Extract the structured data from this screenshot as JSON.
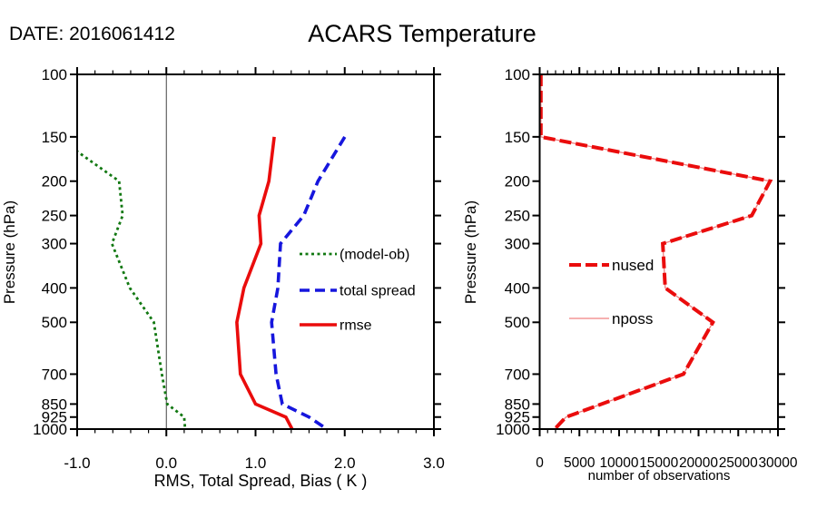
{
  "header": {
    "date_label": "DATE: 2016061412",
    "title": "ACARS Temperature"
  },
  "colors": {
    "bias_green": "#127812",
    "spread_blue": "#1616dd",
    "rmse_red": "#ea0c0c",
    "nused_red": "#ea0c0c",
    "nposs_light_red": "#f08080",
    "axis_black": "#000000",
    "zero_line_gray": "#444444"
  },
  "chart_data": [
    {
      "type": "line",
      "panel": "left",
      "xlabel": "RMS, Total Spread, Bias ( K )",
      "ylabel": "Pressure (hPa)",
      "xlim": [
        -1.0,
        3.0
      ],
      "x_minor_step": 0.2,
      "xticks": [
        {
          "v": -1.0,
          "label": "-1.0"
        },
        {
          "v": 0.0,
          "label": "0.0"
        },
        {
          "v": 1.0,
          "label": "1.0"
        },
        {
          "v": 2.0,
          "label": "2.0"
        },
        {
          "v": 3.0,
          "label": "3.0"
        }
      ],
      "yscale": "log",
      "ylim": [
        100,
        1000
      ],
      "yticks": [
        {
          "v": 100,
          "label": "100"
        },
        {
          "v": 150,
          "label": "150"
        },
        {
          "v": 200,
          "label": "200"
        },
        {
          "v": 250,
          "label": "250"
        },
        {
          "v": 300,
          "label": "300"
        },
        {
          "v": 400,
          "label": "400"
        },
        {
          "v": 500,
          "label": "500"
        },
        {
          "v": 700,
          "label": "700"
        },
        {
          "v": 850,
          "label": "850"
        },
        {
          "v": 925,
          "label": "925"
        },
        {
          "v": 1000,
          "label": "1000"
        }
      ],
      "zero_line_x": 0.0,
      "series": [
        {
          "name": "(model-ob)",
          "color_key": "bias_green",
          "line_style": "dotted",
          "width": 2.8,
          "dash": "3 3.5",
          "pressure": [
            150,
            200,
            250,
            300,
            400,
            500,
            700,
            850,
            925,
            1000
          ],
          "values": [
            -1.23,
            -0.53,
            -0.49,
            -0.61,
            -0.41,
            -0.14,
            -0.05,
            0.01,
            0.2,
            0.21
          ]
        },
        {
          "name": "total spread",
          "color_key": "spread_blue",
          "line_style": "dashed",
          "width": 3.6,
          "dash": "11 6",
          "pressure": [
            150,
            200,
            250,
            300,
            400,
            500,
            700,
            850,
            925,
            1000
          ],
          "values": [
            2.0,
            1.7,
            1.54,
            1.28,
            1.25,
            1.18,
            1.23,
            1.3,
            1.6,
            1.8
          ]
        },
        {
          "name": "rmse",
          "color_key": "rmse_red",
          "line_style": "solid",
          "width": 3.6,
          "dash": "",
          "pressure": [
            150,
            200,
            250,
            300,
            400,
            500,
            700,
            850,
            925,
            1000
          ],
          "values": [
            1.21,
            1.15,
            1.04,
            1.06,
            0.87,
            0.79,
            0.83,
            1.0,
            1.34,
            1.41
          ]
        }
      ]
    },
    {
      "type": "line",
      "panel": "right",
      "xlabel": "number of observations",
      "ylabel": "Pressure (hPa)",
      "xlim": [
        0,
        30000
      ],
      "x_minor_step": 1000,
      "xticks": [
        {
          "v": 0,
          "label": "0"
        },
        {
          "v": 5000,
          "label": "5000"
        },
        {
          "v": 10000,
          "label": "10000"
        },
        {
          "v": 15000,
          "label": "15000"
        },
        {
          "v": 20000,
          "label": "20000"
        },
        {
          "v": 25000,
          "label": "25000"
        },
        {
          "v": 30000,
          "label": "30000"
        }
      ],
      "yscale": "log",
      "ylim": [
        100,
        1000
      ],
      "yticks": [
        {
          "v": 100,
          "label": "100"
        },
        {
          "v": 150,
          "label": "150"
        },
        {
          "v": 200,
          "label": "200"
        },
        {
          "v": 250,
          "label": "250"
        },
        {
          "v": 300,
          "label": "300"
        },
        {
          "v": 400,
          "label": "400"
        },
        {
          "v": 500,
          "label": "500"
        },
        {
          "v": 700,
          "label": "700"
        },
        {
          "v": 850,
          "label": "850"
        },
        {
          "v": 925,
          "label": "925"
        },
        {
          "v": 1000,
          "label": "1000"
        }
      ],
      "series": [
        {
          "name": "nused",
          "color_key": "nused_red",
          "line_style": "dashed",
          "width": 4,
          "dash": "13 5",
          "pressure": [
            100,
            150,
            200,
            250,
            300,
            400,
            500,
            700,
            850,
            925,
            1000
          ],
          "values": [
            150,
            150,
            29000,
            26700,
            15500,
            15800,
            21800,
            18100,
            7800,
            3300,
            1900
          ]
        },
        {
          "name": "nposs",
          "color_key": "nposs_light_red",
          "line_style": "solid",
          "width": 1.3,
          "dash": "",
          "pressure": [
            100,
            150,
            200,
            250,
            300,
            400,
            500,
            700,
            850,
            925,
            1000
          ],
          "values": [
            150,
            150,
            29000,
            26700,
            15500,
            15800,
            21800,
            18100,
            7800,
            3300,
            1900
          ]
        }
      ]
    }
  ]
}
